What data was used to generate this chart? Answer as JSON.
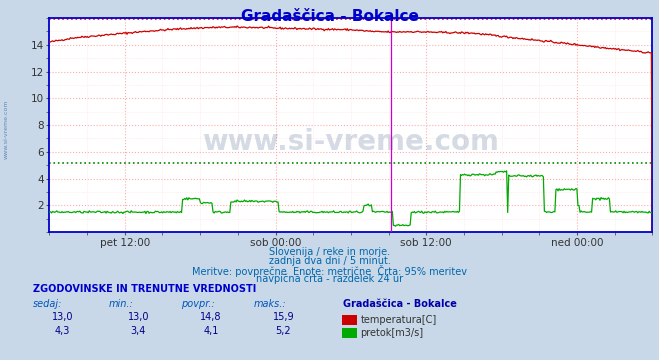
{
  "title": "Gradaščica - Bokalce",
  "title_color": "#0000cc",
  "bg_color": "#c8d8e8",
  "plot_bg_color": "#ffffff",
  "grid_color_major": "#ffaaaa",
  "grid_color_minor": "#ffdddd",
  "xlabel_ticks": [
    "pet 12:00",
    "sob 00:00",
    "sob 12:00",
    "ned 00:00"
  ],
  "xlabel_ticks_pos": [
    0.125,
    0.375,
    0.625,
    0.875
  ],
  "ylim_min": 0,
  "ylim_max": 16.0,
  "yticks": [
    2,
    4,
    6,
    8,
    10,
    12,
    14
  ],
  "ytick_labels": [
    "2",
    "4",
    "6",
    "8",
    "10",
    "12",
    "14"
  ],
  "vline_pos": 0.567,
  "vline_color": "#cc00cc",
  "hline_red_y": 15.9,
  "hline_green_y": 5.2,
  "hline_color_red": "#ff0000",
  "hline_color_green": "#008800",
  "temp_color": "#cc0000",
  "flow_color": "#00aa00",
  "axis_color": "#0000cc",
  "watermark_text": "www.si-vreme.com",
  "watermark_color": "#1a3a6e",
  "watermark_alpha": 0.18,
  "subtitle1": "Slovenija / reke in morje.",
  "subtitle2": "zadnja dva dni / 5 minut.",
  "subtitle3": "Meritve: povprečne  Enote: metrične  Črta: 95% meritev",
  "subtitle4": "navpična črta - razdelek 24 ur",
  "subtitle_color": "#0066aa",
  "table_header": "ZGODOVINSKE IN TRENUTNE VREDNOSTI",
  "table_header_color": "#0000cc",
  "col_headers": [
    "sedaj:",
    "min.:",
    "povpr.:",
    "maks.:"
  ],
  "col_values_temp": [
    "13,0",
    "13,0",
    "14,8",
    "15,9"
  ],
  "col_values_flow": [
    "4,3",
    "3,4",
    "4,1",
    "5,2"
  ],
  "station_label": "Gradaščica - Bokalce",
  "legend_temp": "temperatura[C]",
  "legend_flow": "pretok[m3/s]",
  "legend_color_temp": "#cc0000",
  "legend_color_flow": "#00aa00",
  "left_label": "www.si-vreme.com",
  "left_label_color": "#4477aa",
  "n_points": 576
}
